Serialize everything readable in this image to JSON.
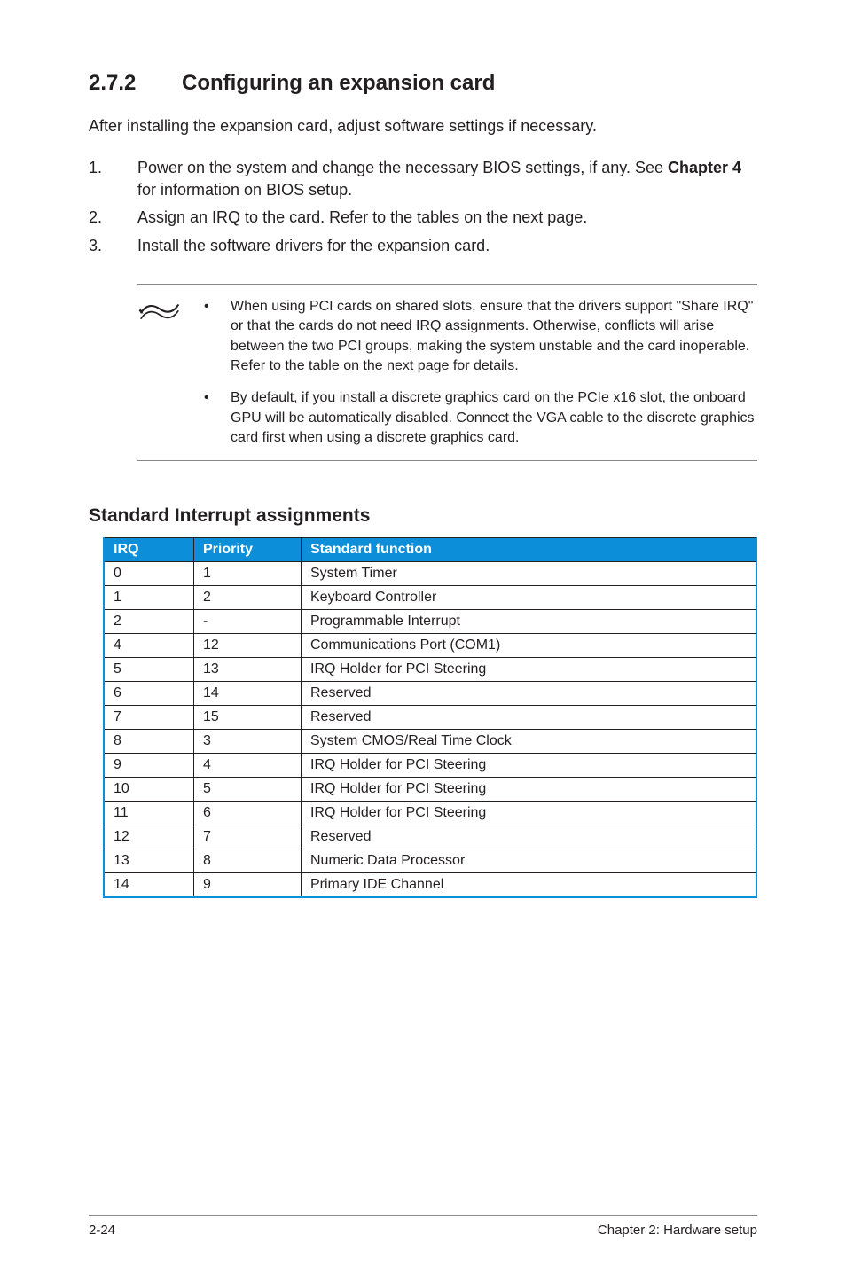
{
  "section": {
    "number": "2.7.2",
    "title": "Configuring an expansion card"
  },
  "intro": "After installing the expansion card, adjust software settings if necessary.",
  "steps": [
    {
      "num": "1.",
      "text_pre": "Power on the system and change the necessary BIOS settings, if any. See ",
      "bold": "Chapter 4",
      "text_post": " for information on BIOS setup."
    },
    {
      "num": "2.",
      "text_pre": "Assign an IRQ to the card. Refer to the tables on the next page.",
      "bold": "",
      "text_post": ""
    },
    {
      "num": "3.",
      "text_pre": "Install the software drivers for the expansion card.",
      "bold": "",
      "text_post": ""
    }
  ],
  "notes": [
    "When using PCI cards on shared slots, ensure that the drivers support \"Share IRQ\" or that the cards do not need IRQ assignments. Otherwise, conflicts will arise between the two PCI groups, making the system unstable and the card inoperable. Refer to the table on the next page for details.",
    "By default, if you install a discrete graphics card on the PCIe x16 slot, the onboard GPU will be automatically disabled. Connect the VGA cable to the discrete graphics card first when using a discrete graphics card."
  ],
  "note_bullet": "•",
  "table": {
    "heading": "Standard Interrupt assignments",
    "columns": [
      "IRQ",
      "Priority",
      "Standard function"
    ],
    "rows": [
      [
        "0",
        "1",
        "System Timer"
      ],
      [
        "1",
        "2",
        "Keyboard Controller"
      ],
      [
        "2",
        "-",
        "Programmable Interrupt"
      ],
      [
        "4",
        "12",
        "Communications Port (COM1)"
      ],
      [
        "5",
        "13",
        "IRQ Holder for PCI Steering"
      ],
      [
        "6",
        "14",
        "Reserved"
      ],
      [
        "7",
        "15",
        "Reserved"
      ],
      [
        "8",
        "3",
        "System CMOS/Real Time Clock"
      ],
      [
        "9",
        "4",
        "IRQ Holder for PCI Steering"
      ],
      [
        "10",
        "5",
        "IRQ Holder for PCI Steering"
      ],
      [
        "11",
        "6",
        "IRQ Holder for PCI Steering"
      ],
      [
        "12",
        "7",
        "Reserved"
      ],
      [
        "13",
        "8",
        "Numeric Data Processor"
      ],
      [
        "14",
        "9",
        "Primary IDE Channel"
      ]
    ],
    "header_bg": "#0d8ed9",
    "header_text_color": "#ffffff",
    "border_accent": "#0d8ed9",
    "cell_border": "#231f20"
  },
  "footer": {
    "left": "2-24",
    "right": "Chapter 2: Hardware setup"
  }
}
